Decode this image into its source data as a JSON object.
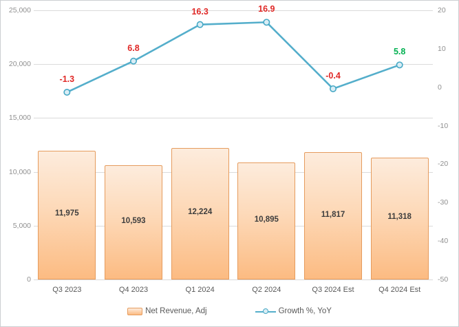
{
  "chart_data": {
    "type": "combo",
    "categories": [
      "Q3 2023",
      "Q4 2023",
      "Q1 2024",
      "Q2 2024",
      "Q3 2024 Est",
      "Q4 2024 Est"
    ],
    "series": [
      {
        "name": "Net Revenue, Adj",
        "type": "bar",
        "axis": "left",
        "values": [
          11975,
          10593,
          12224,
          10895,
          11817,
          11318
        ],
        "labels": [
          "11,975",
          "10,593",
          "12,224",
          "10,895",
          "11,817",
          "11,318"
        ],
        "fill_top": "#fdecdd",
        "fill_bottom": "#fcbb82",
        "border_color": "#e59b5d",
        "label_color": "#3d3d3d"
      },
      {
        "name": "Growth %, YoY",
        "type": "line",
        "axis": "right",
        "values": [
          -1.3,
          6.8,
          16.3,
          16.9,
          -0.4,
          5.8
        ],
        "labels": [
          "-1.3",
          "6.8",
          "16.3",
          "16.9",
          "-0.4",
          "5.8"
        ],
        "label_colors": [
          "#e02826",
          "#e02826",
          "#e02826",
          "#e02826",
          "#e02826",
          "#00b050"
        ],
        "line_color": "#54aecb",
        "marker_fill": "#d9edf5",
        "marker_stroke": "#46a8c5"
      }
    ],
    "left_axis": {
      "min": 0,
      "max": 25000,
      "ticks": [
        "25,000",
        "20,000",
        "15,000",
        "10,000",
        "5,000",
        "0"
      ]
    },
    "right_axis": {
      "min": -50,
      "max": 20,
      "ticks": [
        "20",
        "10",
        "0",
        "-10",
        "-20",
        "-30",
        "-40",
        "-50"
      ]
    },
    "grid": true,
    "legend_position": "bottom",
    "title": ""
  },
  "legend": {
    "items": [
      {
        "label": "Net Revenue, Adj"
      },
      {
        "label": "Growth %, YoY"
      }
    ]
  }
}
